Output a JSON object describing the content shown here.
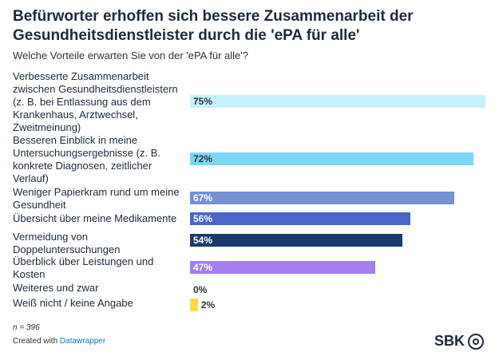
{
  "title": "Befürworter erhoffen sich bessere Zusammenarbeit der Gesundheitsdienstleister durch die 'ePA für alle'",
  "subtitle": "Welche Vorteile erwarten Sie von der 'ePA für alle'?",
  "footer": {
    "n": "n = 396",
    "created_prefix": "Created with",
    "created_link": "Datawrapper",
    "brand": "SBK"
  },
  "chart_data": {
    "type": "bar",
    "orientation": "horizontal",
    "title": "Befürworter erhoffen sich bessere Zusammenarbeit der Gesundheitsdienstleister durch die 'ePA für alle'",
    "subtitle": "Welche Vorteile erwarten Sie von der 'ePA für alle'?",
    "unit": "%",
    "xlim": [
      0,
      75
    ],
    "categories": [
      "Verbesserte Zusammenarbeit zwischen Gesundheitsdienstleistern (z. B. bei Entlassung aus dem Krankenhaus, Arztwechsel, Zweitmeinung)",
      "Besseren Einblick in meine Untersuchungsergebnisse (z. B. konkrete Diagnosen, zeitlicher Verlauf)",
      "Weniger Papierkram rund um meine Gesundheit",
      "Übersicht über meine Medikamente",
      "Vermeidung von Doppeluntersuchungen",
      "Überblick über Leistungen und Kosten",
      "Weiteres und zwar",
      "Weiß nicht / keine Angabe"
    ],
    "values": [
      75,
      72,
      67,
      56,
      54,
      47,
      0,
      2
    ],
    "value_labels": [
      "75%",
      "72%",
      "67%",
      "56%",
      "54%",
      "47%",
      "0%",
      "2%"
    ],
    "colors": [
      "#c8f1fb",
      "#7ed6f7",
      "#7690d6",
      "#4d65c6",
      "#1b3a6b",
      "#a37ef0",
      "#ffffff",
      "#f9d84a"
    ],
    "label_colors": [
      "#333333",
      "#333333",
      "#ffffff",
      "#ffffff",
      "#ffffff",
      "#ffffff",
      "#333333",
      "#333333"
    ]
  }
}
